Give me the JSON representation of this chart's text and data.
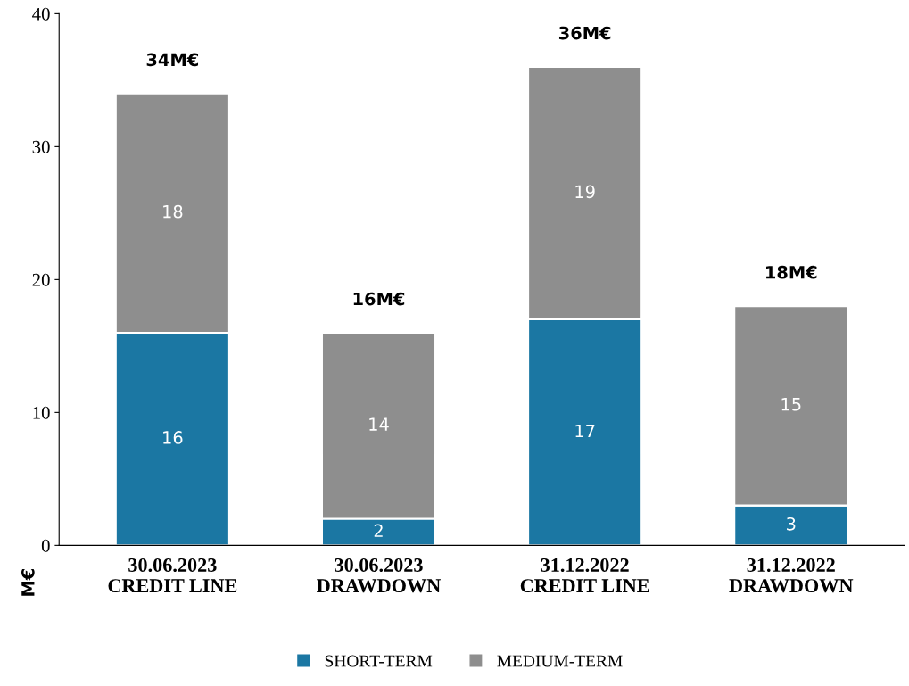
{
  "chart_data": {
    "type": "bar",
    "stacked": true,
    "ylabel": "M€",
    "categories": [
      "30.06.2023\nCREDIT LINE",
      "30.06.2023\nDRAWDOWN",
      "31.12.2022\nCREDIT LINE",
      "31.12.2022\nDRAWDOWN"
    ],
    "series": [
      {
        "name": "SHORT-TERM",
        "color": "#1b77a3",
        "values": [
          16,
          2,
          17,
          3
        ]
      },
      {
        "name": "MEDIUM-TERM",
        "color": "#8e8e8e",
        "values": [
          18,
          14,
          19,
          15
        ]
      }
    ],
    "totals": [
      "34M€",
      "16M€",
      "36M€",
      "18M€"
    ],
    "data_labels": true,
    "ylim": [
      0,
      40
    ],
    "yticks": [
      0,
      10,
      20,
      30,
      40
    ],
    "grid": false,
    "legend": "bottom"
  }
}
